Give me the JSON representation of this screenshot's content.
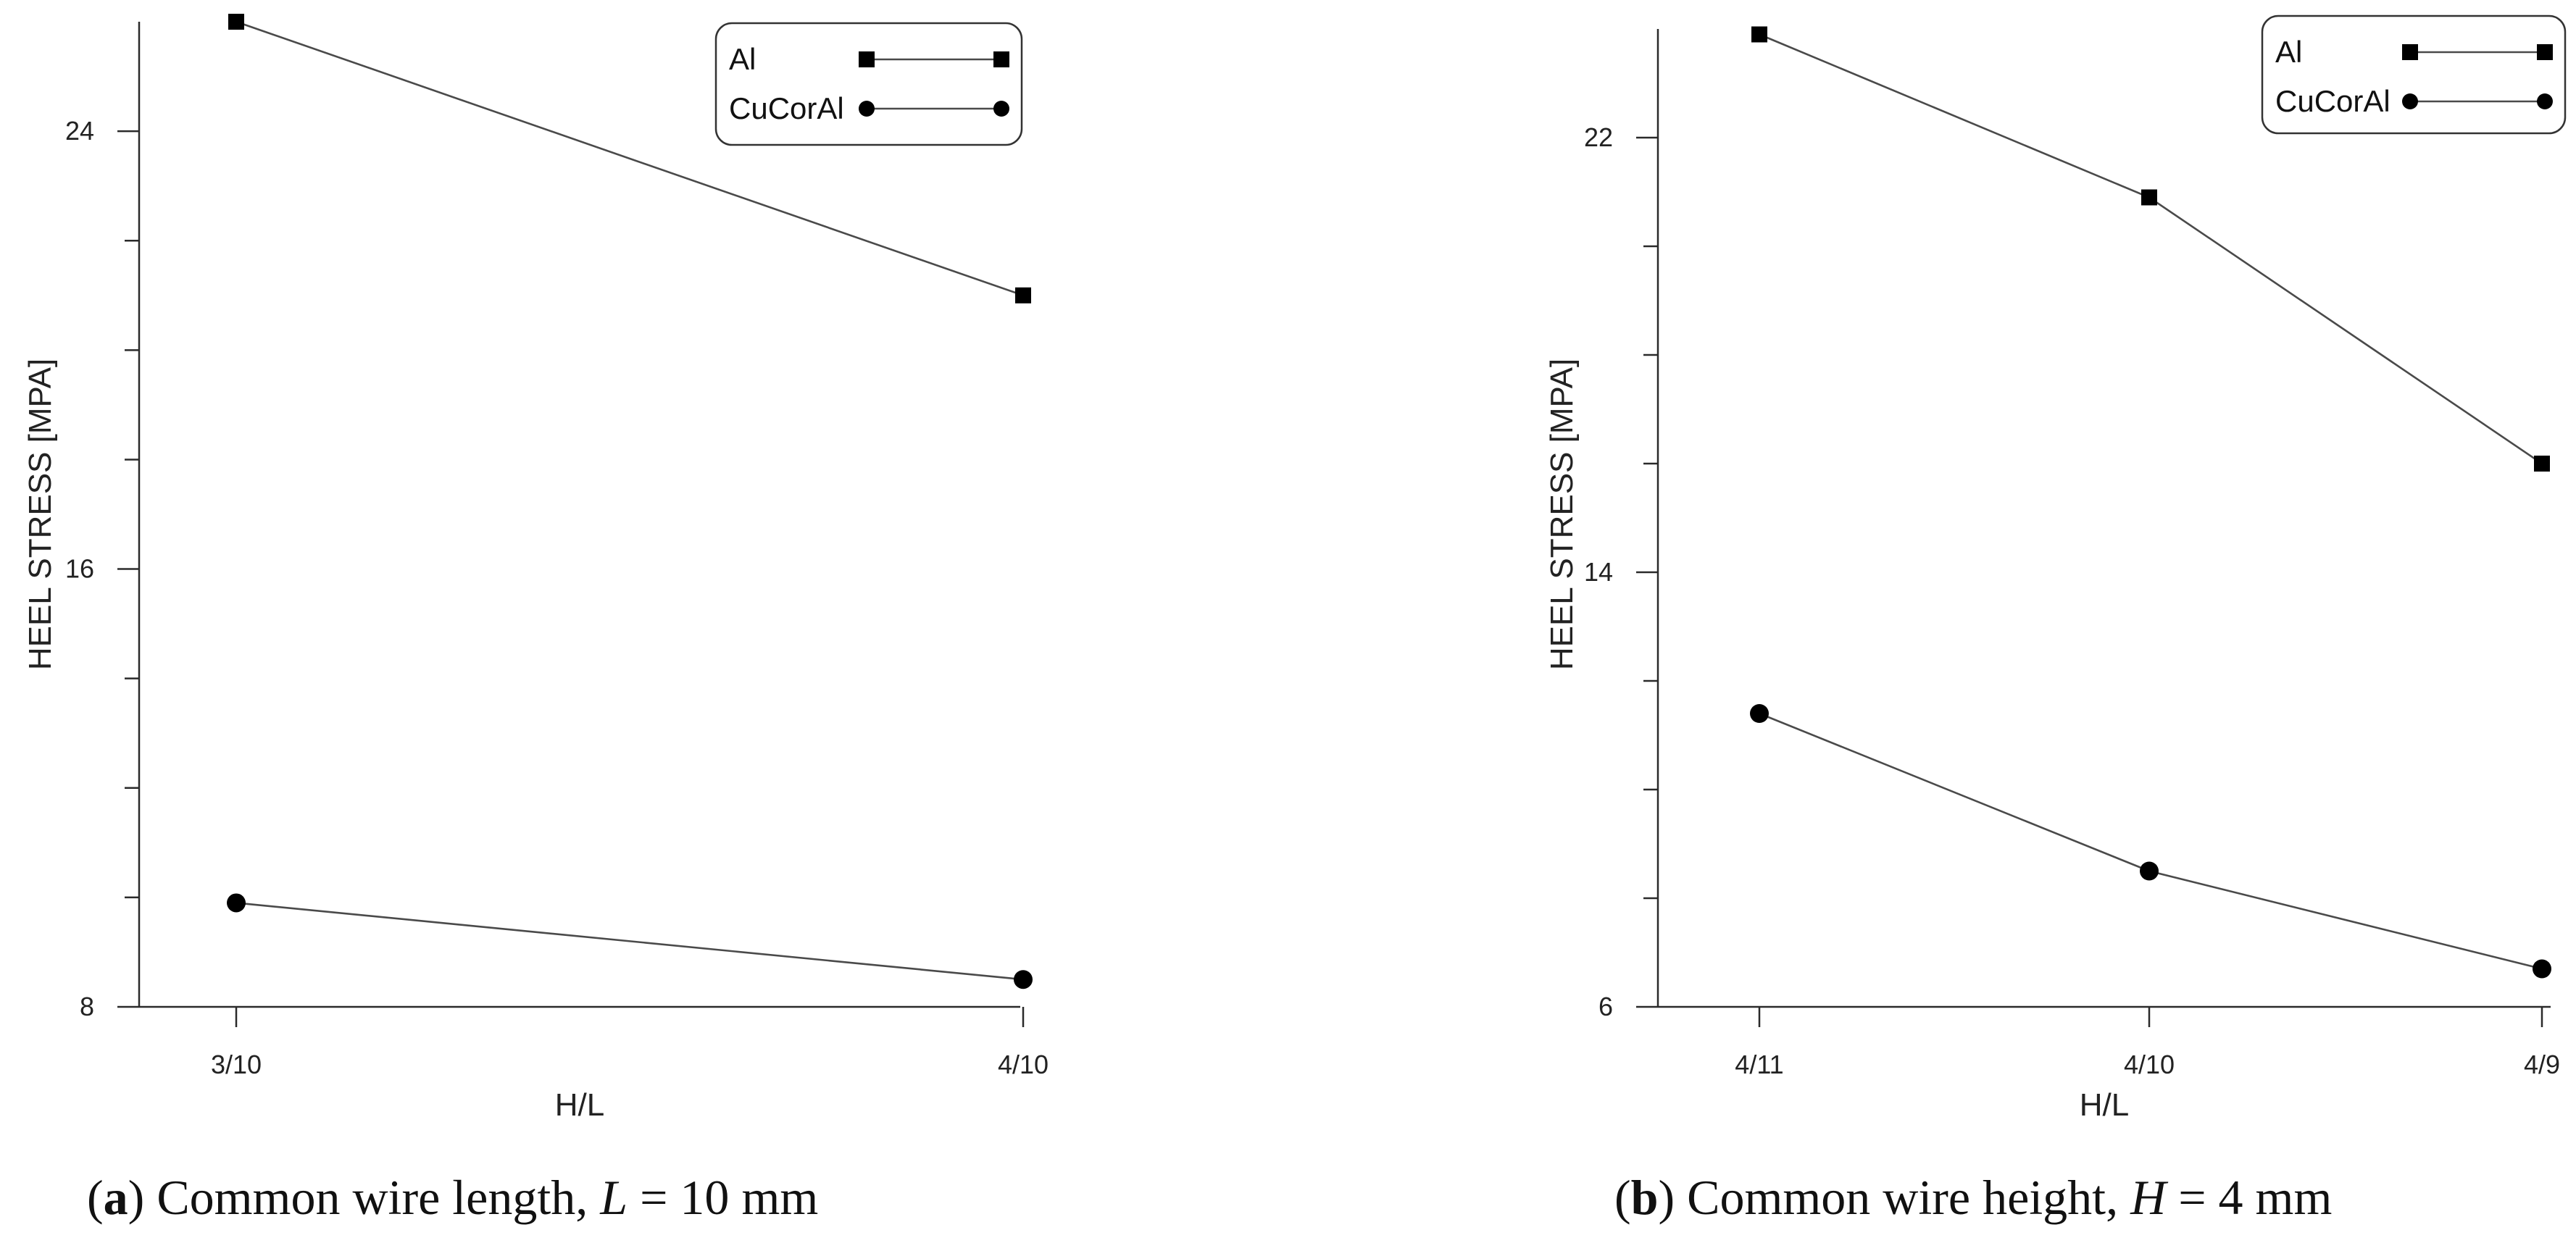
{
  "chart_data": [
    {
      "type": "line",
      "panel_label": "a",
      "caption_text": "Common wire length,",
      "caption_var": "L",
      "caption_eq": "= 10",
      "caption_unit": "mm",
      "xlabel": "H/L",
      "ylabel": "HEEL STRESS [MPA]",
      "categories": [
        "3/10",
        "4/10"
      ],
      "ylim": [
        8,
        26
      ],
      "yticks_major": [
        8,
        16,
        24
      ],
      "yticks_minor": [
        10,
        12,
        14,
        18,
        20,
        22
      ],
      "legend_position": "top-right",
      "series": [
        {
          "name": "Al",
          "marker": "square",
          "values": [
            26.0,
            21.0
          ]
        },
        {
          "name": "CuCorAl",
          "marker": "circle",
          "values": [
            9.9,
            8.5
          ]
        }
      ]
    },
    {
      "type": "line",
      "panel_label": "b",
      "caption_text": "Common wire height,",
      "caption_var": "H",
      "caption_eq": "= 4",
      "caption_unit": "mm",
      "xlabel": "H/L",
      "ylabel": "HEEL STRESS [MPA]",
      "categories": [
        "4/11",
        "4/10",
        "4/9"
      ],
      "ylim": [
        6,
        24
      ],
      "yticks_major": [
        6,
        14,
        22
      ],
      "yticks_minor": [
        8,
        10,
        12,
        16,
        18,
        20
      ],
      "legend_position": "top-right",
      "series": [
        {
          "name": "Al",
          "marker": "square",
          "values": [
            23.9,
            20.9,
            16.0
          ]
        },
        {
          "name": "CuCorAl",
          "marker": "circle",
          "values": [
            11.4,
            8.5,
            6.7
          ]
        }
      ]
    }
  ]
}
